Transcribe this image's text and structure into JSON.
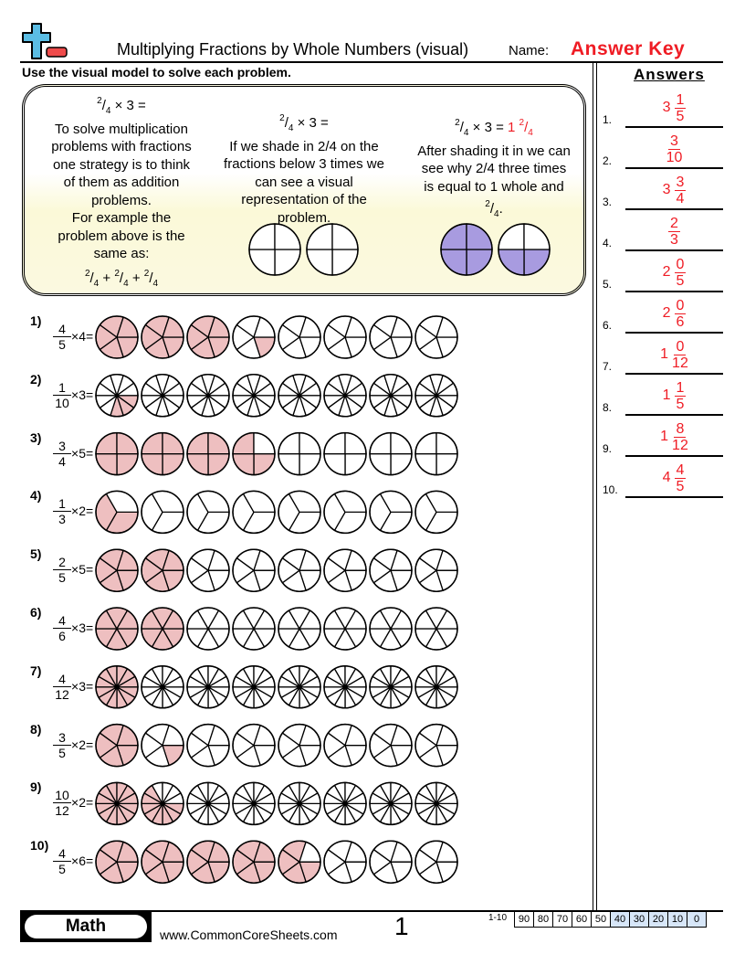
{
  "header": {
    "title": "Multiplying Fractions by Whole Numbers (visual)",
    "name_label": "Name:",
    "name_value": "Answer Key",
    "instructions": "Use the visual model to solve each problem.",
    "answers_title": "Answers",
    "logo_colors": {
      "plus": "#5bbde4",
      "minus": "#ef4b4b"
    }
  },
  "example": {
    "col1": {
      "eq_num": "2",
      "eq_den": "4",
      "eq_rest": "× 3 =",
      "text": [
        "To solve multiplication",
        "problems with fractions",
        "one strategy is to think",
        "of them as addition",
        "problems.",
        "For example the",
        "problem above is the",
        "same as:"
      ],
      "sum": [
        {
          "n": "2",
          "d": "4"
        },
        {
          "n": "2",
          "d": "4"
        },
        {
          "n": "2",
          "d": "4"
        }
      ],
      "plus": "+"
    },
    "col2": {
      "eq_num": "2",
      "eq_den": "4",
      "eq_rest": "× 3 =",
      "text": [
        "If we shade in 2/4 on the",
        "fractions below 3 times we",
        "can see a visual",
        "representation of the",
        "problem."
      ]
    },
    "col3": {
      "eq_num": "2",
      "eq_den": "4",
      "eq_rest": "× 3 =",
      "ans_whole": "1",
      "ans_num": "2",
      "ans_den": "4",
      "text": [
        "After shading it in we can",
        "see why 2/4 three times",
        "is equal to 1 whole and"
      ],
      "tail_num": "2",
      "tail_den": "4",
      "tail_punct": "."
    },
    "shade_color": "#a89be0"
  },
  "shade_color": "#eebfc0",
  "circles_per_problem": 8,
  "problems": [
    {
      "label": "1)",
      "num": 4,
      "den": 5,
      "mult": 4,
      "answer": {
        "whole": "3",
        "num": "1",
        "den": "5"
      }
    },
    {
      "label": "2)",
      "num": 1,
      "den": 10,
      "mult": 3,
      "answer": {
        "whole": "",
        "num": "3",
        "den": "10"
      }
    },
    {
      "label": "3)",
      "num": 3,
      "den": 4,
      "mult": 5,
      "answer": {
        "whole": "3",
        "num": "3",
        "den": "4"
      }
    },
    {
      "label": "4)",
      "num": 1,
      "den": 3,
      "mult": 2,
      "answer": {
        "whole": "",
        "num": "2",
        "den": "3"
      }
    },
    {
      "label": "5)",
      "num": 2,
      "den": 5,
      "mult": 5,
      "answer": {
        "whole": "2",
        "num": "0",
        "den": "5"
      }
    },
    {
      "label": "6)",
      "num": 4,
      "den": 6,
      "mult": 3,
      "answer": {
        "whole": "2",
        "num": "0",
        "den": "6"
      }
    },
    {
      "label": "7)",
      "num": 4,
      "den": 12,
      "mult": 3,
      "answer": {
        "whole": "1",
        "num": "0",
        "den": "12"
      }
    },
    {
      "label": "8)",
      "num": 3,
      "den": 5,
      "mult": 2,
      "answer": {
        "whole": "1",
        "num": "1",
        "den": "5"
      }
    },
    {
      "label": "9)",
      "num": 10,
      "den": 12,
      "mult": 2,
      "answer": {
        "whole": "1",
        "num": "8",
        "den": "12"
      }
    },
    {
      "label": "10)",
      "num": 4,
      "den": 5,
      "mult": 6,
      "answer": {
        "whole": "4",
        "num": "4",
        "den": "5"
      }
    }
  ],
  "answer_numbers": [
    "1.",
    "2.",
    "3.",
    "4.",
    "5.",
    "6.",
    "7.",
    "8.",
    "9.",
    "10."
  ],
  "footer": {
    "subject": "Math",
    "website": "www.CommonCoreSheets.com",
    "page": "1",
    "score_label": "1-10",
    "scores": [
      "90",
      "80",
      "70",
      "60",
      "50",
      "40",
      "30",
      "20",
      "10",
      "0"
    ],
    "score_highlight_color": "#d7e6f8"
  }
}
